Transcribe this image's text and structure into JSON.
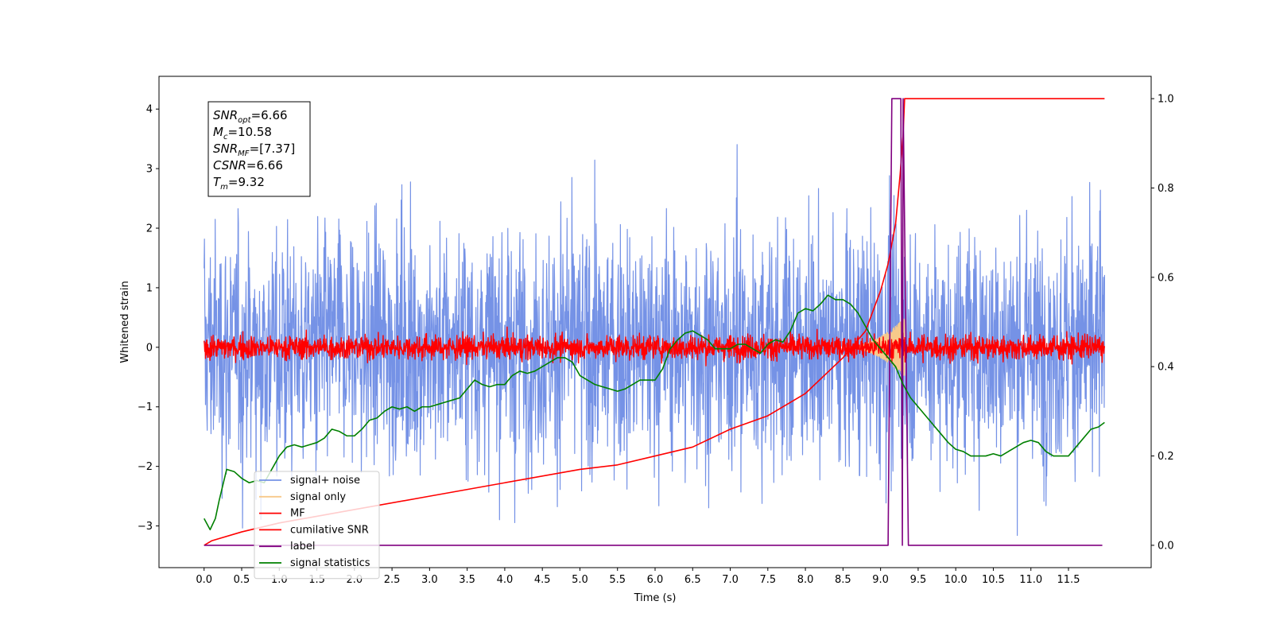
{
  "chart_data": {
    "type": "line",
    "xlabel": "Time (s)",
    "ylabel": "Whitened strain",
    "xlim": [
      -0.6,
      12.6
    ],
    "ylim": [
      -3.7,
      4.55
    ],
    "y2lim": [
      -0.05,
      1.05
    ],
    "x_ticks": [
      0.0,
      0.5,
      1.0,
      1.5,
      2.0,
      2.5,
      3.0,
      3.5,
      4.0,
      4.5,
      5.0,
      5.5,
      6.0,
      6.5,
      7.0,
      7.5,
      8.0,
      8.5,
      9.0,
      9.5,
      10.0,
      10.5,
      11.0,
      11.5
    ],
    "x_tick_labels": [
      "0.0",
      "0.5",
      "1.0",
      "1.5",
      "2.0",
      "2.5",
      "3.0",
      "3.5",
      "4.0",
      "4.5",
      "5.0",
      "5.5",
      "6.0",
      "6.5",
      "7.0",
      "7.5",
      "8.0",
      "8.5",
      "9.0",
      "9.5",
      "10.0",
      "10.5",
      "11.0",
      "11.5"
    ],
    "y_ticks": [
      -3,
      -2,
      -1,
      0,
      1,
      2,
      3,
      4
    ],
    "y_tick_labels": [
      "−3",
      "−2",
      "−1",
      "0",
      "1",
      "2",
      "3",
      "4"
    ],
    "y2_ticks": [
      0.0,
      0.2,
      0.4,
      0.6,
      0.8,
      1.0
    ],
    "y2_tick_labels": [
      "0.0",
      "0.2",
      "0.4",
      "0.6",
      "0.8",
      "1.0"
    ],
    "grid": false,
    "legend_position": "lower-left",
    "annotations": [
      {
        "base": "SNR",
        "sub": "opt",
        "value": "=6.66"
      },
      {
        "base": "M",
        "sub": "c",
        "value": "=10.58"
      },
      {
        "base": "SNR",
        "sub": "MF",
        "value": "=[7.37]"
      },
      {
        "base": "CSNR",
        "sub": "",
        "value": "=6.66"
      },
      {
        "base": "T",
        "sub": "m",
        "value": "=9.32"
      }
    ],
    "series": [
      {
        "name": "signal+ noise",
        "axis": "left",
        "color": "#7592e6",
        "kind": "noise",
        "t_start": 0.0,
        "t_end": 11.98,
        "amplitude_std": 1.0
      },
      {
        "name": "signal only",
        "axis": "left",
        "color": "#f7c98a",
        "kind": "chirp",
        "t_start": 8.5,
        "t_end": 9.32,
        "peak_amplitude": 0.5
      },
      {
        "name": "MF",
        "axis": "left",
        "color": "#ff0000",
        "kind": "noise",
        "t_start": 0.0,
        "t_end": 11.98,
        "amplitude_std": 0.1
      },
      {
        "name": "cumilative SNR",
        "axis": "right",
        "color": "#ff0000",
        "kind": "line",
        "x": [
          0.0,
          0.1,
          0.5,
          1.0,
          2.0,
          3.0,
          4.0,
          5.0,
          5.5,
          6.0,
          6.5,
          7.0,
          7.5,
          8.0,
          8.5,
          8.8,
          9.0,
          9.1,
          9.2,
          9.26,
          9.3,
          9.32,
          11.98
        ],
        "y": [
          0.0,
          0.01,
          0.03,
          0.05,
          0.08,
          0.11,
          0.14,
          0.17,
          0.18,
          0.2,
          0.22,
          0.26,
          0.29,
          0.34,
          0.42,
          0.48,
          0.57,
          0.63,
          0.72,
          0.83,
          0.92,
          1.0,
          1.0
        ]
      },
      {
        "name": "label",
        "axis": "right",
        "color": "#800080",
        "kind": "line",
        "x": [
          0.0,
          9.1,
          9.15,
          9.27,
          9.29,
          9.3,
          9.37,
          11.95
        ],
        "y": [
          0.0,
          0.0,
          1.0,
          1.0,
          0.0,
          1.0,
          0.0,
          0.0
        ]
      },
      {
        "name": "signal statistics",
        "axis": "right",
        "color": "#008000",
        "kind": "line",
        "x": [
          0.0,
          0.08,
          0.15,
          0.2,
          0.3,
          0.4,
          0.5,
          0.6,
          0.7,
          0.8,
          0.9,
          1.0,
          1.1,
          1.2,
          1.3,
          1.4,
          1.5,
          1.6,
          1.7,
          1.8,
          1.9,
          2.0,
          2.1,
          2.2,
          2.3,
          2.4,
          2.5,
          2.6,
          2.7,
          2.8,
          2.9,
          3.0,
          3.1,
          3.2,
          3.3,
          3.4,
          3.5,
          3.6,
          3.7,
          3.8,
          3.9,
          4.0,
          4.1,
          4.2,
          4.3,
          4.4,
          4.5,
          4.6,
          4.7,
          4.8,
          4.9,
          5.0,
          5.1,
          5.2,
          5.3,
          5.4,
          5.5,
          5.6,
          5.7,
          5.8,
          5.9,
          6.0,
          6.1,
          6.2,
          6.3,
          6.4,
          6.5,
          6.6,
          6.7,
          6.8,
          6.9,
          7.0,
          7.1,
          7.2,
          7.3,
          7.4,
          7.5,
          7.6,
          7.7,
          7.8,
          7.9,
          8.0,
          8.1,
          8.2,
          8.3,
          8.4,
          8.5,
          8.6,
          8.7,
          8.8,
          8.9,
          9.0,
          9.1,
          9.2,
          9.3,
          9.4,
          9.5,
          9.6,
          9.7,
          9.8,
          9.9,
          10.0,
          10.1,
          10.2,
          10.3,
          10.4,
          10.5,
          10.6,
          10.7,
          10.8,
          10.9,
          11.0,
          11.1,
          11.2,
          11.3,
          11.4,
          11.5,
          11.6,
          11.7,
          11.8,
          11.9,
          11.98
        ],
        "y": [
          0.06,
          0.035,
          0.06,
          0.1,
          0.17,
          0.165,
          0.15,
          0.14,
          0.145,
          0.14,
          0.17,
          0.2,
          0.22,
          0.225,
          0.22,
          0.225,
          0.23,
          0.24,
          0.26,
          0.255,
          0.245,
          0.245,
          0.26,
          0.28,
          0.285,
          0.3,
          0.31,
          0.305,
          0.31,
          0.3,
          0.31,
          0.31,
          0.315,
          0.32,
          0.325,
          0.33,
          0.35,
          0.37,
          0.36,
          0.355,
          0.36,
          0.36,
          0.38,
          0.39,
          0.385,
          0.39,
          0.4,
          0.41,
          0.42,
          0.42,
          0.41,
          0.38,
          0.37,
          0.36,
          0.355,
          0.35,
          0.345,
          0.35,
          0.36,
          0.37,
          0.37,
          0.37,
          0.395,
          0.44,
          0.46,
          0.475,
          0.48,
          0.47,
          0.46,
          0.44,
          0.44,
          0.44,
          0.45,
          0.45,
          0.44,
          0.43,
          0.45,
          0.46,
          0.455,
          0.48,
          0.52,
          0.53,
          0.525,
          0.54,
          0.56,
          0.55,
          0.55,
          0.54,
          0.52,
          0.49,
          0.46,
          0.44,
          0.42,
          0.4,
          0.36,
          0.33,
          0.31,
          0.29,
          0.27,
          0.25,
          0.23,
          0.215,
          0.21,
          0.2,
          0.2,
          0.2,
          0.205,
          0.2,
          0.21,
          0.22,
          0.23,
          0.235,
          0.23,
          0.21,
          0.2,
          0.2,
          0.2,
          0.22,
          0.24,
          0.26,
          0.265,
          0.275
        ]
      }
    ]
  }
}
